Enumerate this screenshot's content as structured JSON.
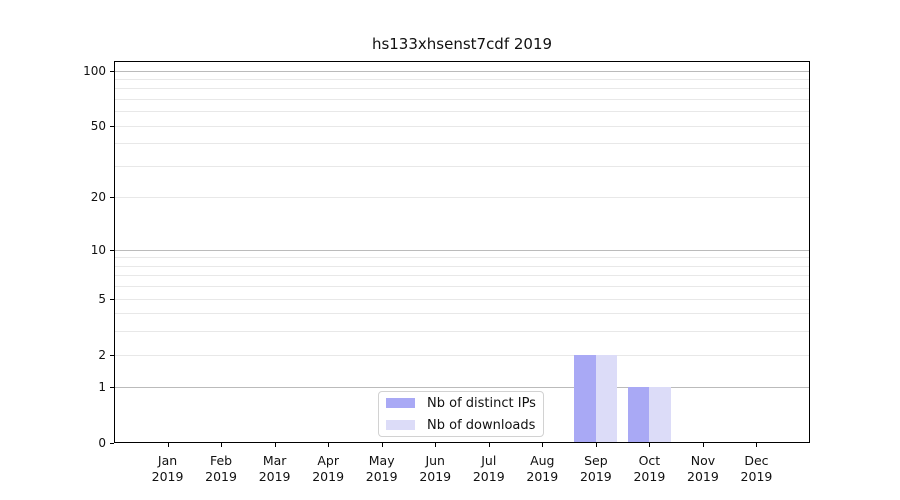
{
  "chart_data": {
    "type": "bar",
    "title": "hs133xhsenst7cdf 2019",
    "categories": [
      "Jan 2019",
      "Feb 2019",
      "Mar 2019",
      "Apr 2019",
      "May 2019",
      "Jun 2019",
      "Jul 2019",
      "Aug 2019",
      "Sep 2019",
      "Oct 2019",
      "Nov 2019",
      "Dec 2019"
    ],
    "series": [
      {
        "name": "Nb of distinct IPs",
        "color": "#a9a9f5",
        "values": [
          0,
          0,
          0,
          0,
          0,
          0,
          0,
          0,
          2,
          1,
          0,
          0
        ]
      },
      {
        "name": "Nb of downloads",
        "color": "#dcdcf8",
        "values": [
          0,
          0,
          0,
          0,
          0,
          0,
          0,
          0,
          2,
          1,
          0,
          0
        ]
      }
    ],
    "xlabel": "",
    "ylabel": "",
    "yscale": "log1p",
    "ylim": [
      0,
      113
    ],
    "y_ticks": [
      0,
      1,
      2,
      5,
      10,
      20,
      50,
      100
    ],
    "grid": {
      "on": true,
      "major_lines": [
        1,
        10,
        100
      ],
      "minor_lines": [
        2,
        3,
        4,
        5,
        6,
        7,
        8,
        9,
        20,
        30,
        40,
        50,
        60,
        70,
        80,
        90
      ]
    },
    "legend_position": "inside lower-center"
  },
  "legend": {
    "items": [
      {
        "label": "Nb of distinct IPs"
      },
      {
        "label": "Nb of downloads"
      }
    ]
  },
  "colors": {
    "bar_distinct_ips": "#a9a9f5",
    "bar_downloads": "#dcdcf8",
    "grid_major": "#bbbbbb",
    "grid_minor": "#e8e8e8",
    "spine": "#000000",
    "legend_border": "#d2d2d2",
    "text": "#111111",
    "background": "#ffffff"
  }
}
